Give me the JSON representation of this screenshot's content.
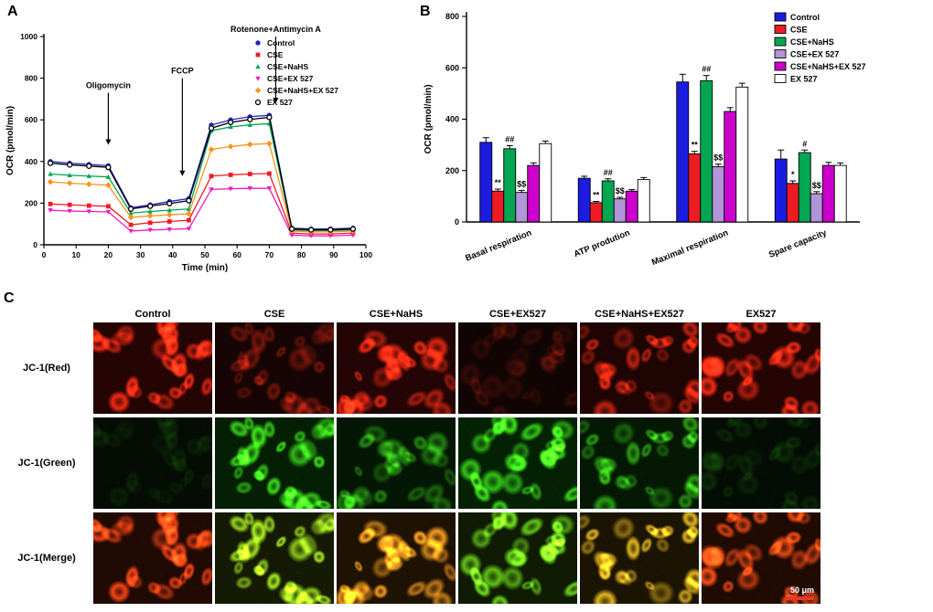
{
  "figure": {
    "panel_a_label": "A",
    "panel_b_label": "B",
    "panel_c_label": "C"
  },
  "chart_data": [
    {
      "id": "ocr-timecourse",
      "type": "line",
      "title": "",
      "xlabel": "Time (min)",
      "ylabel": "OCR (pmol/min)",
      "xlim": [
        0,
        100
      ],
      "ylim": [
        0,
        1000
      ],
      "xticks": [
        0,
        10,
        20,
        30,
        40,
        50,
        60,
        70,
        80,
        90,
        100
      ],
      "yticks": [
        0,
        200,
        400,
        600,
        800,
        1000
      ],
      "legend_position": "top-right-inside",
      "x": [
        2,
        8,
        14,
        20,
        27,
        33,
        39,
        45,
        52,
        58,
        64,
        70,
        77,
        83,
        89,
        96
      ],
      "annotations": [
        {
          "label": "Oligomycin",
          "x": 20,
          "from": 730,
          "to": 480
        },
        {
          "label": "FCCP",
          "x": 43,
          "from": 800,
          "to": 330
        },
        {
          "label": "Rotenone+Antimycin A",
          "x": 72,
          "from": 1000,
          "to": 680
        }
      ],
      "series": [
        {
          "name": "Control",
          "color": "#2121cc",
          "marker": "circle",
          "error": 12,
          "values": [
            400,
            392,
            386,
            380,
            178,
            192,
            208,
            222,
            575,
            600,
            615,
            622,
            80,
            76,
            76,
            80
          ]
        },
        {
          "name": "CSE",
          "color": "#ed1c24",
          "marker": "square",
          "error": 10,
          "values": [
            196,
            192,
            188,
            185,
            96,
            106,
            112,
            118,
            330,
            336,
            340,
            342,
            56,
            52,
            52,
            56
          ]
        },
        {
          "name": "CSE+NaHS",
          "color": "#00a651",
          "marker": "triangle",
          "error": 10,
          "values": [
            340,
            334,
            330,
            326,
            152,
            160,
            166,
            172,
            548,
            566,
            576,
            582,
            72,
            68,
            68,
            72
          ]
        },
        {
          "name": "CSE+EX 527",
          "color": "#e81cc4",
          "marker": "triangle-down",
          "error": 9,
          "values": [
            166,
            162,
            160,
            158,
            66,
            71,
            74,
            77,
            266,
            269,
            271,
            271,
            46,
            43,
            43,
            46
          ]
        },
        {
          "name": "CSE+NaHS+EX 527",
          "color": "#f7941d",
          "marker": "diamond",
          "error": 10,
          "values": [
            302,
            296,
            291,
            286,
            132,
            139,
            144,
            149,
            458,
            472,
            482,
            486,
            66,
            62,
            62,
            66
          ]
        },
        {
          "name": "EX 527",
          "color": "#000000",
          "marker": "circle-open",
          "error": 12,
          "values": [
            392,
            384,
            378,
            372,
            172,
            186,
            198,
            212,
            560,
            588,
            602,
            612,
            76,
            72,
            72,
            76
          ]
        }
      ]
    },
    {
      "id": "ocr-bars",
      "type": "bar",
      "title": "",
      "xlabel": "",
      "ylabel": "OCR (pmol/min)",
      "ylim": [
        0,
        800
      ],
      "yticks": [
        0,
        200,
        400,
        600,
        800
      ],
      "legend_position": "top-right",
      "categories": [
        "Basal respiration",
        "ATP prodution",
        "Maximal respiration",
        "Spare capacity"
      ],
      "series": [
        {
          "name": "Control",
          "color": "#1c1ce0",
          "values": [
            310,
            170,
            545,
            245
          ],
          "errors": [
            18,
            8,
            30,
            35
          ]
        },
        {
          "name": "CSE",
          "color": "#ed1c24",
          "values": [
            120,
            75,
            265,
            150
          ],
          "errors": [
            8,
            5,
            10,
            10
          ]
        },
        {
          "name": "CSE+NaHS",
          "color": "#00a651",
          "values": [
            285,
            160,
            550,
            270
          ],
          "errors": [
            12,
            8,
            20,
            10
          ]
        },
        {
          "name": "CSE+EX 527",
          "color": "#b294d8",
          "values": [
            115,
            90,
            215,
            110
          ],
          "errors": [
            8,
            6,
            10,
            8
          ]
        },
        {
          "name": "CSE+NaHS+EX 527",
          "color": "#cc00cc",
          "values": [
            220,
            120,
            430,
            220
          ],
          "errors": [
            10,
            6,
            15,
            12
          ]
        },
        {
          "name": "EX 527",
          "color": "#ffffff",
          "values": [
            305,
            165,
            525,
            220
          ],
          "errors": [
            10,
            8,
            15,
            10
          ]
        }
      ],
      "significance": [
        {
          "category": 0,
          "series": 1,
          "label": "**"
        },
        {
          "category": 0,
          "series": 2,
          "label": "##"
        },
        {
          "category": 0,
          "series": 3,
          "label": "$$"
        },
        {
          "category": 1,
          "series": 1,
          "label": "**"
        },
        {
          "category": 1,
          "series": 2,
          "label": "##"
        },
        {
          "category": 1,
          "series": 3,
          "label": "$$"
        },
        {
          "category": 2,
          "series": 1,
          "label": "**"
        },
        {
          "category": 2,
          "series": 2,
          "label": "##"
        },
        {
          "category": 2,
          "series": 3,
          "label": "$$"
        },
        {
          "category": 3,
          "series": 1,
          "label": "*"
        },
        {
          "category": 3,
          "series": 2,
          "label": "#"
        },
        {
          "category": 3,
          "series": 3,
          "label": "$$"
        }
      ]
    }
  ],
  "microscopy": {
    "rows": [
      {
        "label": "JC-1(Red)",
        "channel": "red"
      },
      {
        "label": "JC-1(Green)",
        "channel": "green"
      },
      {
        "label": "JC-1(Merge)",
        "channel": "merge"
      }
    ],
    "columns": [
      {
        "label": "Control",
        "red": 0.95,
        "green": 0.1
      },
      {
        "label": "CSE",
        "red": 0.4,
        "green": 0.88
      },
      {
        "label": "CSE+NaHS",
        "red": 0.85,
        "green": 0.5
      },
      {
        "label": "CSE+EX527",
        "red": 0.2,
        "green": 0.97
      },
      {
        "label": "CSE+NaHS+EX527",
        "red": 0.7,
        "green": 0.6
      },
      {
        "label": "EX527",
        "red": 0.92,
        "green": 0.14
      }
    ],
    "scale_bar": "50 μm"
  }
}
